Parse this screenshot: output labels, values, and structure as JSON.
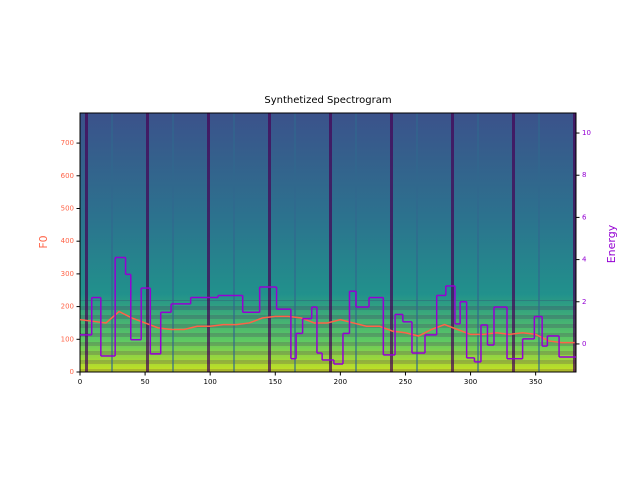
{
  "chart_data": {
    "type": "line",
    "title": "Synthetized Spectrogram",
    "ylabel": "F0",
    "y2label": "Energy",
    "xlim": [
      0,
      381
    ],
    "xticks": [
      0,
      50,
      100,
      150,
      200,
      250,
      300,
      350
    ],
    "ylim": [
      0,
      792
    ],
    "yticks": [
      0,
      100,
      200,
      300,
      400,
      500,
      600,
      700
    ],
    "y2lim": [
      -1.33,
      10.95
    ],
    "y2ticks": [
      0,
      2,
      4,
      6,
      8,
      10
    ],
    "ycolor": "#ff6347",
    "y2color": "#9400d3",
    "series": [
      {
        "color": "#ff6347",
        "axis": "y",
        "x": [
          0,
          10,
          20,
          30,
          40,
          50,
          60,
          70,
          80,
          90,
          100,
          110,
          120,
          130,
          140,
          150,
          160,
          170,
          180,
          190,
          200,
          210,
          220,
          230,
          240,
          250,
          260,
          270,
          280,
          290,
          300,
          310,
          320,
          330,
          340,
          350,
          360,
          370,
          380
        ],
        "values": [
          160,
          155,
          150,
          185,
          165,
          150,
          135,
          130,
          130,
          140,
          140,
          145,
          145,
          150,
          165,
          170,
          170,
          165,
          150,
          150,
          160,
          150,
          140,
          140,
          125,
          120,
          110,
          130,
          145,
          130,
          115,
          115,
          120,
          115,
          120,
          115,
          95,
          90,
          90
        ]
      },
      {
        "color": "#9400d3",
        "axis": "y2",
        "step": "post",
        "x": [
          0,
          9,
          16,
          27,
          35,
          39,
          47,
          54,
          62,
          70,
          85,
          106,
          125,
          138,
          151,
          162,
          166,
          171,
          178,
          182,
          186,
          195,
          202,
          207,
          212,
          222,
          233,
          242,
          248,
          255,
          265,
          274,
          281,
          288,
          292,
          297,
          303,
          308,
          313,
          318,
          328,
          340,
          349,
          355,
          359,
          368
        ],
        "values": [
          0.43,
          2.2,
          -0.57,
          4.1,
          3.3,
          0.2,
          2.65,
          -0.47,
          1.5,
          1.9,
          2.2,
          2.3,
          1.5,
          2.7,
          1.65,
          -0.7,
          0.5,
          1.2,
          1.75,
          -0.43,
          -0.76,
          -0.95,
          0.5,
          2.5,
          1.75,
          2.2,
          -0.52,
          1.4,
          1.05,
          -0.43,
          0.43,
          2.3,
          2.75,
          0.95,
          2.0,
          -0.66,
          -0.85,
          0.9,
          -0.05,
          1.75,
          -0.7,
          0.24,
          1.3,
          -0.1,
          0.38,
          -0.62
        ]
      }
    ]
  }
}
